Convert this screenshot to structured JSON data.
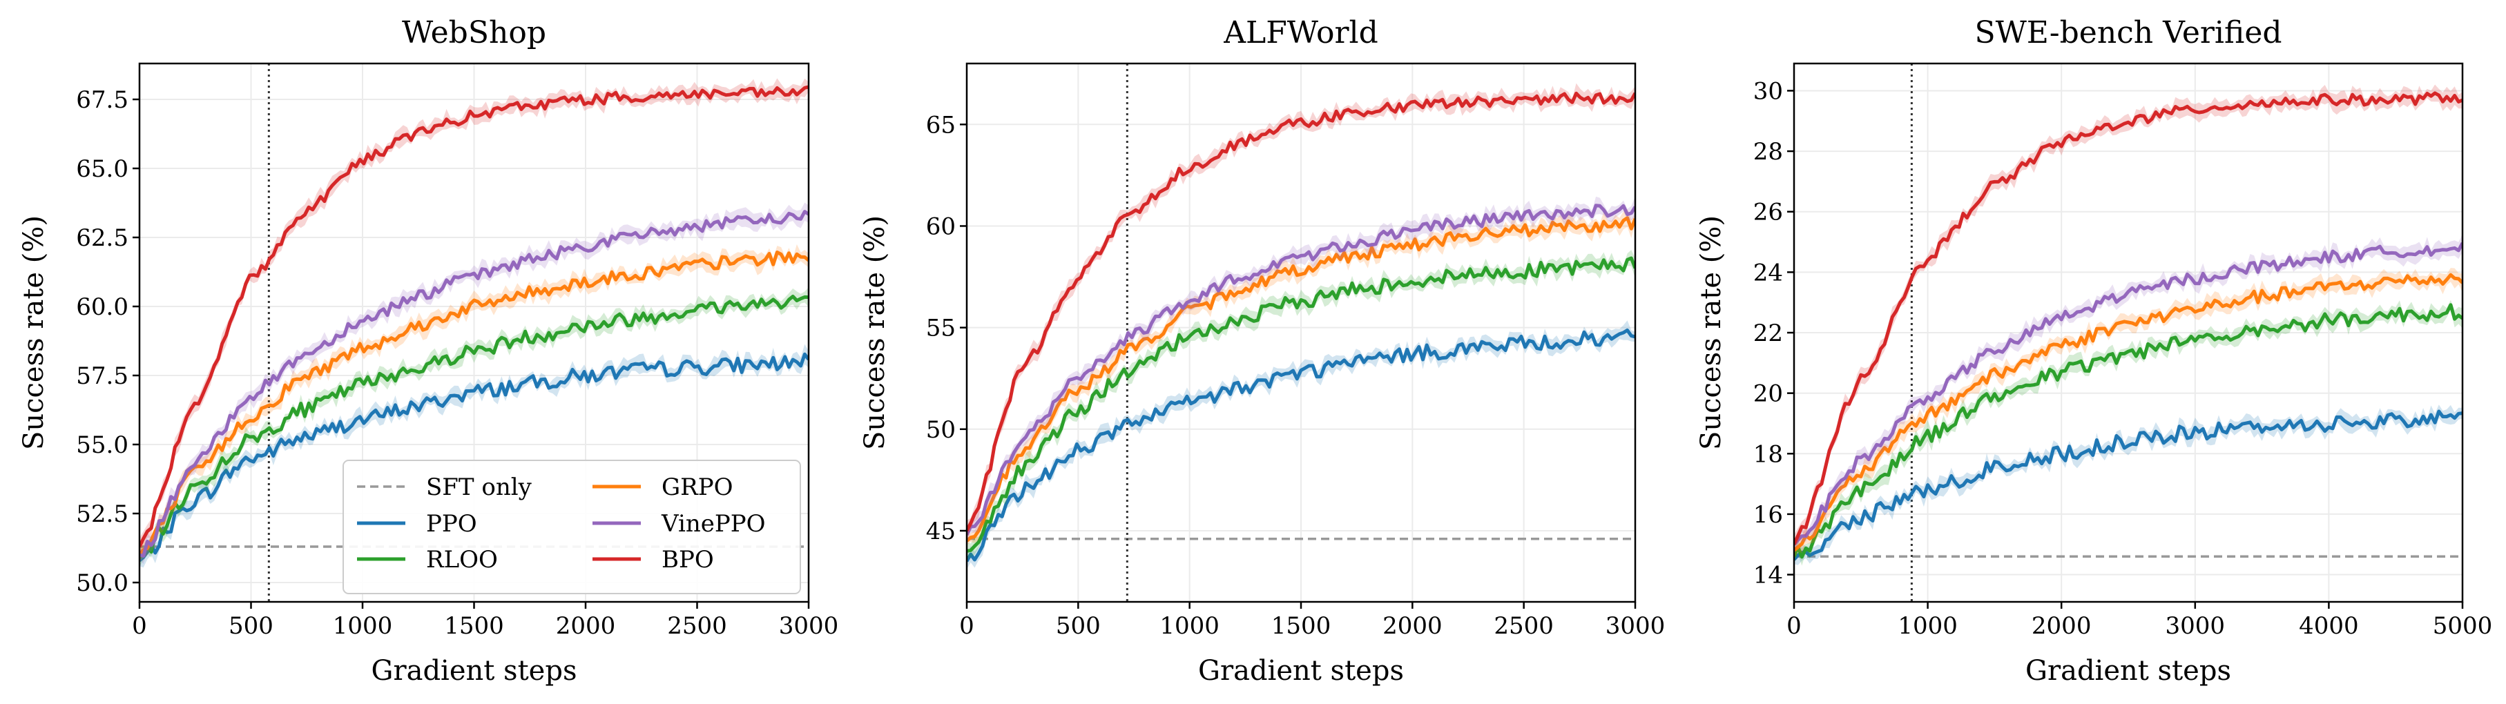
{
  "chart_data": [
    {
      "type": "line",
      "title": "WebShop",
      "xlabel": "Gradient steps",
      "ylabel": "Success rate (%)",
      "xlim": [
        0,
        3000
      ],
      "ylim": [
        49.3,
        68.8
      ],
      "xticks": [
        0,
        500,
        1000,
        1500,
        2000,
        2500,
        3000
      ],
      "yticks": [
        50.0,
        52.5,
        55.0,
        57.5,
        60.0,
        62.5,
        65.0,
        67.5
      ],
      "ytick_labels": [
        "50.0",
        "52.5",
        "55.0",
        "57.5",
        "60.0",
        "62.5",
        "65.0",
        "67.5"
      ],
      "grid": true,
      "baseline": {
        "name": "SFT only",
        "value": 51.3
      },
      "vline_x": 580,
      "series": [
        {
          "name": "PPO",
          "x": [
            0,
            250,
            500,
            750,
            1000,
            1250,
            1500,
            1750,
            2000,
            2250,
            2500,
            2750,
            3000
          ],
          "values": [
            50.8,
            53.0,
            54.5,
            55.3,
            55.9,
            56.4,
            56.9,
            57.2,
            57.5,
            57.7,
            57.8,
            57.9,
            58.0
          ]
        },
        {
          "name": "RLOO",
          "x": [
            0,
            250,
            500,
            750,
            1000,
            1250,
            1500,
            1750,
            2000,
            2250,
            2500,
            2750,
            3000
          ],
          "values": [
            50.9,
            53.5,
            55.2,
            56.3,
            57.2,
            57.8,
            58.4,
            58.9,
            59.3,
            59.6,
            59.9,
            60.1,
            60.3
          ]
        },
        {
          "name": "GRPO",
          "x": [
            0,
            250,
            500,
            750,
            1000,
            1250,
            1500,
            1750,
            2000,
            2250,
            2500,
            2750,
            3000
          ],
          "values": [
            51.0,
            54.0,
            56.0,
            57.5,
            58.5,
            59.3,
            60.0,
            60.5,
            60.9,
            61.2,
            61.5,
            61.7,
            61.8
          ]
        },
        {
          "name": "VinePPO",
          "x": [
            0,
            250,
            500,
            750,
            1000,
            1250,
            1500,
            1750,
            2000,
            2250,
            2500,
            2750,
            3000
          ],
          "values": [
            51.0,
            54.3,
            56.8,
            58.3,
            59.5,
            60.4,
            61.1,
            61.7,
            62.2,
            62.6,
            62.9,
            63.1,
            63.3
          ]
        },
        {
          "name": "BPO",
          "x": [
            0,
            250,
            500,
            750,
            1000,
            1250,
            1500,
            1750,
            2000,
            2250,
            2500,
            2750,
            3000
          ],
          "values": [
            51.3,
            56.5,
            61.0,
            63.5,
            65.3,
            66.3,
            66.9,
            67.3,
            67.5,
            67.6,
            67.7,
            67.7,
            67.8
          ]
        }
      ]
    },
    {
      "type": "line",
      "title": "ALFWorld",
      "xlabel": "Gradient steps",
      "ylabel": "Success rate (%)",
      "xlim": [
        0,
        3000
      ],
      "ylim": [
        41.5,
        68.0
      ],
      "xticks": [
        0,
        500,
        1000,
        1500,
        2000,
        2500,
        3000
      ],
      "yticks": [
        45,
        50,
        55,
        60,
        65
      ],
      "ytick_labels": [
        "45",
        "50",
        "55",
        "60",
        "65"
      ],
      "grid": true,
      "baseline": {
        "name": "SFT only",
        "value": 44.6
      },
      "vline_x": 720,
      "series": [
        {
          "name": "PPO",
          "x": [
            0,
            250,
            500,
            750,
            1000,
            1250,
            1500,
            1750,
            2000,
            2250,
            2500,
            2750,
            3000
          ],
          "values": [
            43.5,
            47.0,
            49.0,
            50.3,
            51.3,
            52.1,
            52.8,
            53.3,
            53.7,
            54.0,
            54.2,
            54.4,
            54.5
          ]
        },
        {
          "name": "RLOO",
          "x": [
            0,
            250,
            500,
            750,
            1000,
            1250,
            1500,
            1750,
            2000,
            2250,
            2500,
            2750,
            3000
          ],
          "values": [
            44.0,
            48.0,
            51.0,
            53.0,
            54.5,
            55.5,
            56.3,
            56.9,
            57.3,
            57.6,
            57.8,
            58.0,
            58.1
          ]
        },
        {
          "name": "GRPO",
          "x": [
            0,
            250,
            500,
            750,
            1000,
            1250,
            1500,
            1750,
            2000,
            2250,
            2500,
            2750,
            3000
          ],
          "values": [
            44.5,
            49.0,
            52.0,
            54.0,
            55.8,
            57.0,
            57.9,
            58.6,
            59.1,
            59.5,
            59.8,
            60.0,
            60.1
          ]
        },
        {
          "name": "VinePPO",
          "x": [
            0,
            250,
            500,
            750,
            1000,
            1250,
            1500,
            1750,
            2000,
            2250,
            2500,
            2750,
            3000
          ],
          "values": [
            44.8,
            49.5,
            52.5,
            54.7,
            56.3,
            57.6,
            58.5,
            59.2,
            59.8,
            60.2,
            60.5,
            60.7,
            60.8
          ]
        },
        {
          "name": "BPO",
          "x": [
            0,
            250,
            500,
            750,
            1000,
            1250,
            1500,
            1750,
            2000,
            2250,
            2500,
            2750,
            3000
          ],
          "values": [
            45.0,
            53.0,
            57.5,
            60.8,
            62.9,
            64.2,
            65.1,
            65.6,
            65.9,
            66.1,
            66.2,
            66.3,
            66.3
          ]
        }
      ]
    },
    {
      "type": "line",
      "title": "SWE-bench Verified",
      "xlabel": "Gradient steps",
      "ylabel": "Success rate (%)",
      "xlim": [
        0,
        5000
      ],
      "ylim": [
        13.1,
        30.9
      ],
      "xticks": [
        0,
        1000,
        2000,
        3000,
        4000,
        5000
      ],
      "yticks": [
        14,
        16,
        18,
        20,
        22,
        24,
        26,
        28,
        30
      ],
      "ytick_labels": [
        "14",
        "16",
        "18",
        "20",
        "22",
        "24",
        "26",
        "28",
        "30"
      ],
      "grid": true,
      "baseline": {
        "name": "SFT only",
        "value": 14.6
      },
      "vline_x": 880,
      "series": [
        {
          "name": "PPO",
          "x": [
            0,
            500,
            1000,
            1500,
            2000,
            2500,
            3000,
            3500,
            4000,
            4500,
            5000
          ],
          "values": [
            14.5,
            15.9,
            16.8,
            17.5,
            18.0,
            18.4,
            18.7,
            18.9,
            19.0,
            19.1,
            19.2
          ]
        },
        {
          "name": "RLOO",
          "x": [
            0,
            500,
            1000,
            1500,
            2000,
            2500,
            3000,
            3500,
            4000,
            4500,
            5000
          ],
          "values": [
            14.6,
            16.8,
            18.6,
            19.9,
            20.7,
            21.3,
            21.8,
            22.1,
            22.4,
            22.6,
            22.7
          ]
        },
        {
          "name": "GRPO",
          "x": [
            0,
            500,
            1000,
            1500,
            2000,
            2500,
            3000,
            3500,
            4000,
            4500,
            5000
          ],
          "values": [
            14.8,
            17.4,
            19.3,
            20.6,
            21.6,
            22.3,
            22.8,
            23.2,
            23.5,
            23.7,
            23.8
          ]
        },
        {
          "name": "VinePPO",
          "x": [
            0,
            500,
            1000,
            1500,
            2000,
            2500,
            3000,
            3500,
            4000,
            4500,
            5000
          ],
          "values": [
            15.0,
            17.8,
            19.9,
            21.4,
            22.5,
            23.3,
            23.8,
            24.2,
            24.5,
            24.7,
            24.8
          ]
        },
        {
          "name": "BPO",
          "x": [
            0,
            500,
            1000,
            1500,
            2000,
            2500,
            3000,
            3500,
            4000,
            4500,
            5000
          ],
          "values": [
            15.0,
            20.5,
            24.5,
            26.9,
            28.3,
            29.0,
            29.4,
            29.6,
            29.7,
            29.7,
            29.8
          ]
        }
      ]
    }
  ],
  "legend": {
    "panel": 0,
    "entries": [
      {
        "label": "SFT only",
        "color": "#999999",
        "dash": true
      },
      {
        "label": "PPO",
        "color": "#1f77b4"
      },
      {
        "label": "RLOO",
        "color": "#2ca02c"
      },
      {
        "label": "GRPO",
        "color": "#ff7f0e"
      },
      {
        "label": "VinePPO",
        "color": "#9467bd"
      },
      {
        "label": "BPO",
        "color": "#d62728"
      }
    ]
  },
  "colors": {
    "PPO": "#1f77b4",
    "RLOO": "#2ca02c",
    "GRPO": "#ff7f0e",
    "VinePPO": "#9467bd",
    "BPO": "#d62728",
    "SFT only": "#999999"
  }
}
